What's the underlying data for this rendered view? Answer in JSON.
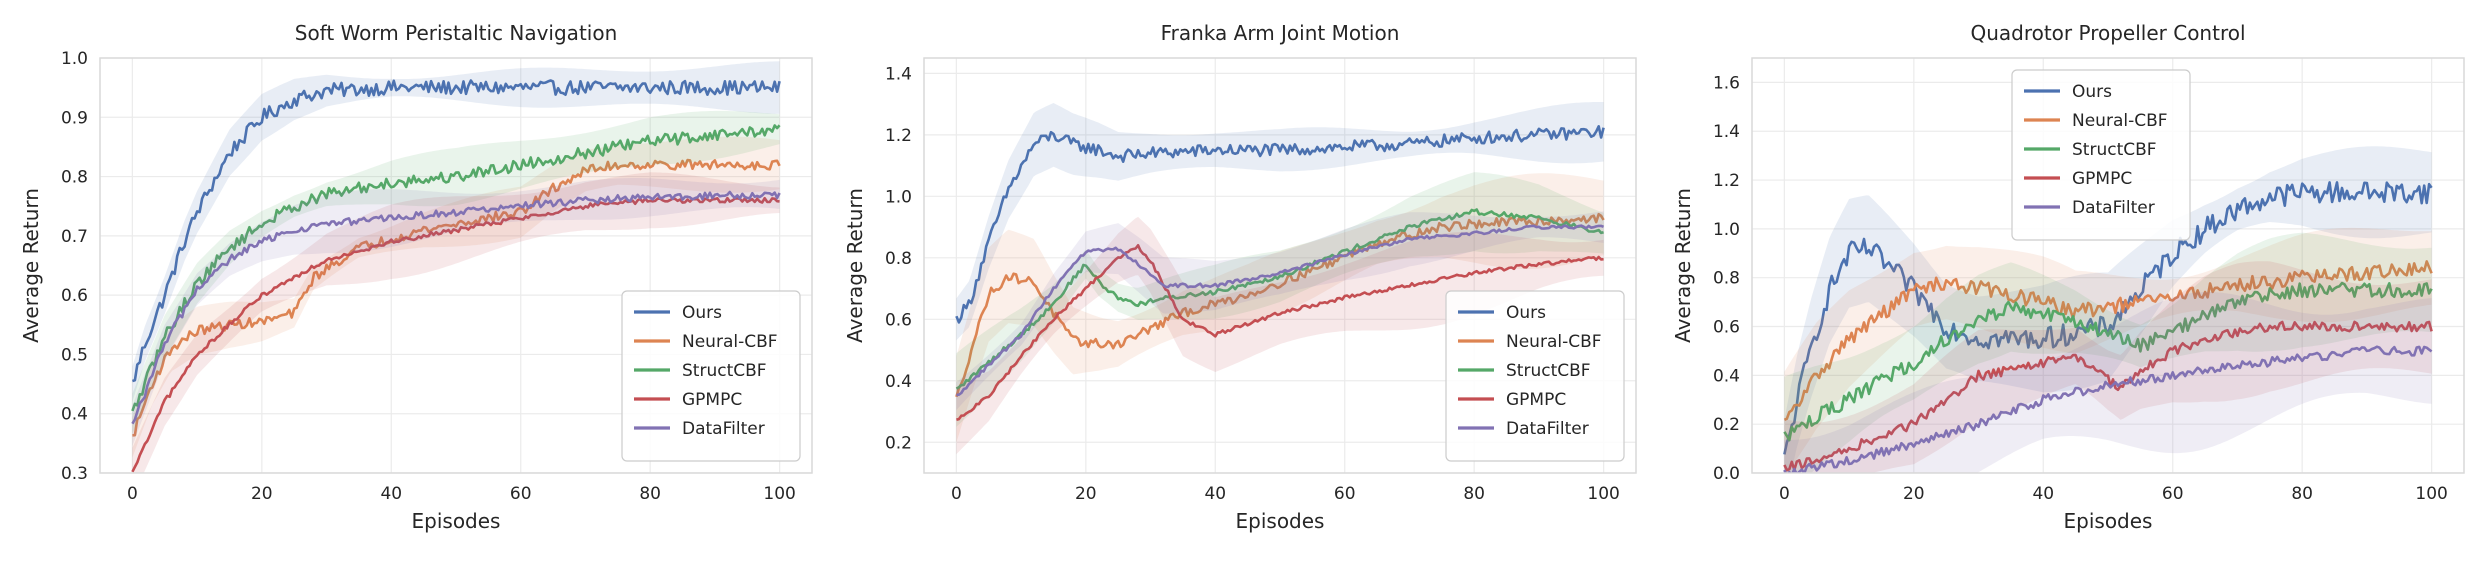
{
  "figure": {
    "ylabel": "Average Return",
    "xlabel": "Episodes"
  },
  "colors": {
    "Ours": "#4c72b0",
    "Neural-CBF": "#dd8452",
    "StructCBF": "#55a868",
    "GPMPC": "#c44e52",
    "DataFilter": "#8172b3"
  },
  "chart_data": [
    {
      "type": "line",
      "title": "Soft Worm Peristaltic Navigation",
      "xlabel": "Episodes",
      "ylabel": "Average Return",
      "xlim": [
        -5,
        105
      ],
      "ylim": [
        0.3,
        1.0
      ],
      "xticks": [
        0,
        20,
        40,
        60,
        80,
        100
      ],
      "yticks": [
        0.3,
        0.4,
        0.5,
        0.6,
        0.7,
        0.8,
        0.9,
        1.0
      ],
      "legend_loc": "lower-right",
      "series": [
        {
          "name": "Ours",
          "noise": 0.012,
          "band": 0.035,
          "points": [
            [
              0,
              0.45
            ],
            [
              2,
              0.52
            ],
            [
              5,
              0.6
            ],
            [
              8,
              0.69
            ],
            [
              10,
              0.74
            ],
            [
              15,
              0.84
            ],
            [
              20,
              0.9
            ],
            [
              25,
              0.93
            ],
            [
              30,
              0.945
            ],
            [
              40,
              0.95
            ],
            [
              60,
              0.95
            ],
            [
              100,
              0.95
            ]
          ]
        },
        {
          "name": "Neural-CBF",
          "noise": 0.008,
          "band": 0.04,
          "points": [
            [
              0,
              0.36
            ],
            [
              3,
              0.45
            ],
            [
              6,
              0.51
            ],
            [
              10,
              0.54
            ],
            [
              15,
              0.55
            ],
            [
              20,
              0.555
            ],
            [
              25,
              0.57
            ],
            [
              28,
              0.63
            ],
            [
              35,
              0.68
            ],
            [
              45,
              0.71
            ],
            [
              55,
              0.73
            ],
            [
              60,
              0.74
            ],
            [
              65,
              0.78
            ],
            [
              70,
              0.81
            ],
            [
              75,
              0.82
            ],
            [
              100,
              0.82
            ]
          ]
        },
        {
          "name": "StructCBF",
          "noise": 0.01,
          "band": 0.04,
          "points": [
            [
              0,
              0.4
            ],
            [
              5,
              0.53
            ],
            [
              10,
              0.62
            ],
            [
              15,
              0.68
            ],
            [
              20,
              0.72
            ],
            [
              25,
              0.75
            ],
            [
              30,
              0.77
            ],
            [
              40,
              0.79
            ],
            [
              50,
              0.8
            ],
            [
              60,
              0.82
            ],
            [
              70,
              0.84
            ],
            [
              80,
              0.86
            ],
            [
              90,
              0.87
            ],
            [
              100,
              0.88
            ]
          ]
        },
        {
          "name": "GPMPC",
          "noise": 0.004,
          "band": 0.05,
          "points": [
            [
              0,
              0.3
            ],
            [
              5,
              0.42
            ],
            [
              10,
              0.5
            ],
            [
              15,
              0.55
            ],
            [
              20,
              0.6
            ],
            [
              25,
              0.63
            ],
            [
              30,
              0.66
            ],
            [
              40,
              0.69
            ],
            [
              50,
              0.71
            ],
            [
              60,
              0.73
            ],
            [
              70,
              0.75
            ],
            [
              80,
              0.76
            ],
            [
              100,
              0.76
            ]
          ]
        },
        {
          "name": "DataFilter",
          "noise": 0.006,
          "band": 0.04,
          "points": [
            [
              0,
              0.38
            ],
            [
              5,
              0.52
            ],
            [
              10,
              0.61
            ],
            [
              15,
              0.66
            ],
            [
              20,
              0.69
            ],
            [
              25,
              0.71
            ],
            [
              30,
              0.72
            ],
            [
              40,
              0.73
            ],
            [
              50,
              0.74
            ],
            [
              60,
              0.75
            ],
            [
              70,
              0.76
            ],
            [
              80,
              0.765
            ],
            [
              100,
              0.77
            ]
          ]
        }
      ]
    },
    {
      "type": "line",
      "title": "Franka Arm Joint Motion",
      "xlabel": "Episodes",
      "ylabel": "Average Return",
      "xlim": [
        -5,
        105
      ],
      "ylim": [
        0.1,
        1.45
      ],
      "xticks": [
        0,
        20,
        40,
        60,
        80,
        100
      ],
      "yticks": [
        0.2,
        0.4,
        0.6,
        0.8,
        1.0,
        1.2,
        1.4
      ],
      "legend_loc": "lower-right",
      "series": [
        {
          "name": "Ours",
          "noise": 0.02,
          "band": 0.08,
          "points": [
            [
              0,
              0.6
            ],
            [
              2,
              0.65
            ],
            [
              5,
              0.85
            ],
            [
              8,
              1.02
            ],
            [
              12,
              1.17
            ],
            [
              15,
              1.2
            ],
            [
              18,
              1.17
            ],
            [
              22,
              1.15
            ],
            [
              25,
              1.13
            ],
            [
              30,
              1.14
            ],
            [
              40,
              1.15
            ],
            [
              50,
              1.15
            ],
            [
              60,
              1.16
            ],
            [
              70,
              1.17
            ],
            [
              80,
              1.19
            ],
            [
              90,
              1.2
            ],
            [
              100,
              1.21
            ]
          ]
        },
        {
          "name": "Neural-CBF",
          "noise": 0.015,
          "band": 0.12,
          "points": [
            [
              0,
              0.34
            ],
            [
              3,
              0.55
            ],
            [
              5,
              0.68
            ],
            [
              8,
              0.74
            ],
            [
              12,
              0.72
            ],
            [
              15,
              0.62
            ],
            [
              18,
              0.53
            ],
            [
              22,
              0.52
            ],
            [
              25,
              0.52
            ],
            [
              30,
              0.57
            ],
            [
              35,
              0.62
            ],
            [
              45,
              0.68
            ],
            [
              55,
              0.76
            ],
            [
              65,
              0.85
            ],
            [
              75,
              0.9
            ],
            [
              80,
              0.91
            ],
            [
              90,
              0.92
            ],
            [
              100,
              0.93
            ]
          ]
        },
        {
          "name": "StructCBF",
          "noise": 0.008,
          "band": 0.1,
          "points": [
            [
              0,
              0.37
            ],
            [
              5,
              0.46
            ],
            [
              10,
              0.55
            ],
            [
              15,
              0.65
            ],
            [
              18,
              0.73
            ],
            [
              20,
              0.78
            ],
            [
              22,
              0.72
            ],
            [
              25,
              0.67
            ],
            [
              28,
              0.65
            ],
            [
              33,
              0.67
            ],
            [
              40,
              0.69
            ],
            [
              50,
              0.74
            ],
            [
              60,
              0.82
            ],
            [
              70,
              0.9
            ],
            [
              80,
              0.95
            ],
            [
              90,
              0.93
            ],
            [
              100,
              0.88
            ]
          ]
        },
        {
          "name": "GPMPC",
          "noise": 0.006,
          "band": 0.12,
          "points": [
            [
              0,
              0.27
            ],
            [
              5,
              0.35
            ],
            [
              10,
              0.48
            ],
            [
              15,
              0.6
            ],
            [
              20,
              0.7
            ],
            [
              25,
              0.8
            ],
            [
              28,
              0.84
            ],
            [
              30,
              0.79
            ],
            [
              35,
              0.6
            ],
            [
              40,
              0.55
            ],
            [
              50,
              0.62
            ],
            [
              60,
              0.67
            ],
            [
              70,
              0.71
            ],
            [
              80,
              0.75
            ],
            [
              90,
              0.78
            ],
            [
              100,
              0.8
            ]
          ]
        },
        {
          "name": "DataFilter",
          "noise": 0.006,
          "band": 0.08,
          "points": [
            [
              0,
              0.35
            ],
            [
              5,
              0.45
            ],
            [
              10,
              0.55
            ],
            [
              15,
              0.7
            ],
            [
              20,
              0.82
            ],
            [
              25,
              0.83
            ],
            [
              28,
              0.78
            ],
            [
              32,
              0.71
            ],
            [
              40,
              0.71
            ],
            [
              50,
              0.75
            ],
            [
              60,
              0.81
            ],
            [
              70,
              0.86
            ],
            [
              80,
              0.88
            ],
            [
              90,
              0.9
            ],
            [
              100,
              0.9
            ]
          ]
        }
      ]
    },
    {
      "type": "line",
      "title": "Quadrotor Propeller Control",
      "xlabel": "Episodes",
      "ylabel": "Average Return",
      "xlim": [
        -5,
        105
      ],
      "ylim": [
        0.0,
        1.7
      ],
      "xticks": [
        0,
        20,
        40,
        60,
        80,
        100
      ],
      "yticks": [
        0.0,
        0.2,
        0.4,
        0.6,
        0.8,
        1.0,
        1.2,
        1.4,
        1.6
      ],
      "legend_loc": "top-left",
      "series": [
        {
          "name": "Ours",
          "noise": 0.045,
          "band": 0.2,
          "points": [
            [
              0,
              0.05
            ],
            [
              2,
              0.3
            ],
            [
              4,
              0.5
            ],
            [
              7,
              0.75
            ],
            [
              10,
              0.9
            ],
            [
              13,
              0.92
            ],
            [
              16,
              0.85
            ],
            [
              20,
              0.75
            ],
            [
              25,
              0.6
            ],
            [
              30,
              0.55
            ],
            [
              40,
              0.55
            ],
            [
              50,
              0.6
            ],
            [
              55,
              0.75
            ],
            [
              60,
              0.9
            ],
            [
              65,
              1.0
            ],
            [
              70,
              1.08
            ],
            [
              75,
              1.13
            ],
            [
              80,
              1.15
            ],
            [
              100,
              1.15
            ]
          ]
        },
        {
          "name": "Neural-CBF",
          "noise": 0.03,
          "band": 0.18,
          "points": [
            [
              0,
              0.2
            ],
            [
              5,
              0.4
            ],
            [
              10,
              0.55
            ],
            [
              15,
              0.65
            ],
            [
              20,
              0.75
            ],
            [
              25,
              0.78
            ],
            [
              30,
              0.76
            ],
            [
              40,
              0.7
            ],
            [
              45,
              0.66
            ],
            [
              50,
              0.68
            ],
            [
              55,
              0.7
            ],
            [
              60,
              0.72
            ],
            [
              70,
              0.77
            ],
            [
              80,
              0.8
            ],
            [
              90,
              0.82
            ],
            [
              100,
              0.84
            ]
          ]
        },
        {
          "name": "StructCBF",
          "noise": 0.03,
          "band": 0.2,
          "points": [
            [
              0,
              0.15
            ],
            [
              5,
              0.23
            ],
            [
              10,
              0.3
            ],
            [
              15,
              0.38
            ],
            [
              20,
              0.45
            ],
            [
              25,
              0.55
            ],
            [
              30,
              0.63
            ],
            [
              35,
              0.68
            ],
            [
              40,
              0.65
            ],
            [
              45,
              0.62
            ],
            [
              50,
              0.57
            ],
            [
              55,
              0.52
            ],
            [
              60,
              0.58
            ],
            [
              65,
              0.65
            ],
            [
              70,
              0.7
            ],
            [
              75,
              0.73
            ],
            [
              80,
              0.75
            ],
            [
              100,
              0.75
            ]
          ]
        },
        {
          "name": "GPMPC",
          "noise": 0.02,
          "band": 0.22,
          "points": [
            [
              0,
              0.02
            ],
            [
              5,
              0.05
            ],
            [
              10,
              0.1
            ],
            [
              15,
              0.15
            ],
            [
              20,
              0.2
            ],
            [
              25,
              0.3
            ],
            [
              30,
              0.4
            ],
            [
              35,
              0.42
            ],
            [
              40,
              0.45
            ],
            [
              45,
              0.48
            ],
            [
              50,
              0.38
            ],
            [
              52,
              0.35
            ],
            [
              55,
              0.42
            ],
            [
              60,
              0.5
            ],
            [
              65,
              0.55
            ],
            [
              70,
              0.58
            ],
            [
              75,
              0.6
            ],
            [
              100,
              0.6
            ]
          ]
        },
        {
          "name": "DataFilter",
          "noise": 0.018,
          "band": 0.25,
          "points": [
            [
              0,
              0.0
            ],
            [
              10,
              0.05
            ],
            [
              20,
              0.12
            ],
            [
              30,
              0.2
            ],
            [
              40,
              0.3
            ],
            [
              50,
              0.36
            ],
            [
              55,
              0.38
            ],
            [
              60,
              0.4
            ],
            [
              70,
              0.44
            ],
            [
              80,
              0.47
            ],
            [
              90,
              0.5
            ],
            [
              100,
              0.5
            ]
          ]
        }
      ]
    }
  ]
}
